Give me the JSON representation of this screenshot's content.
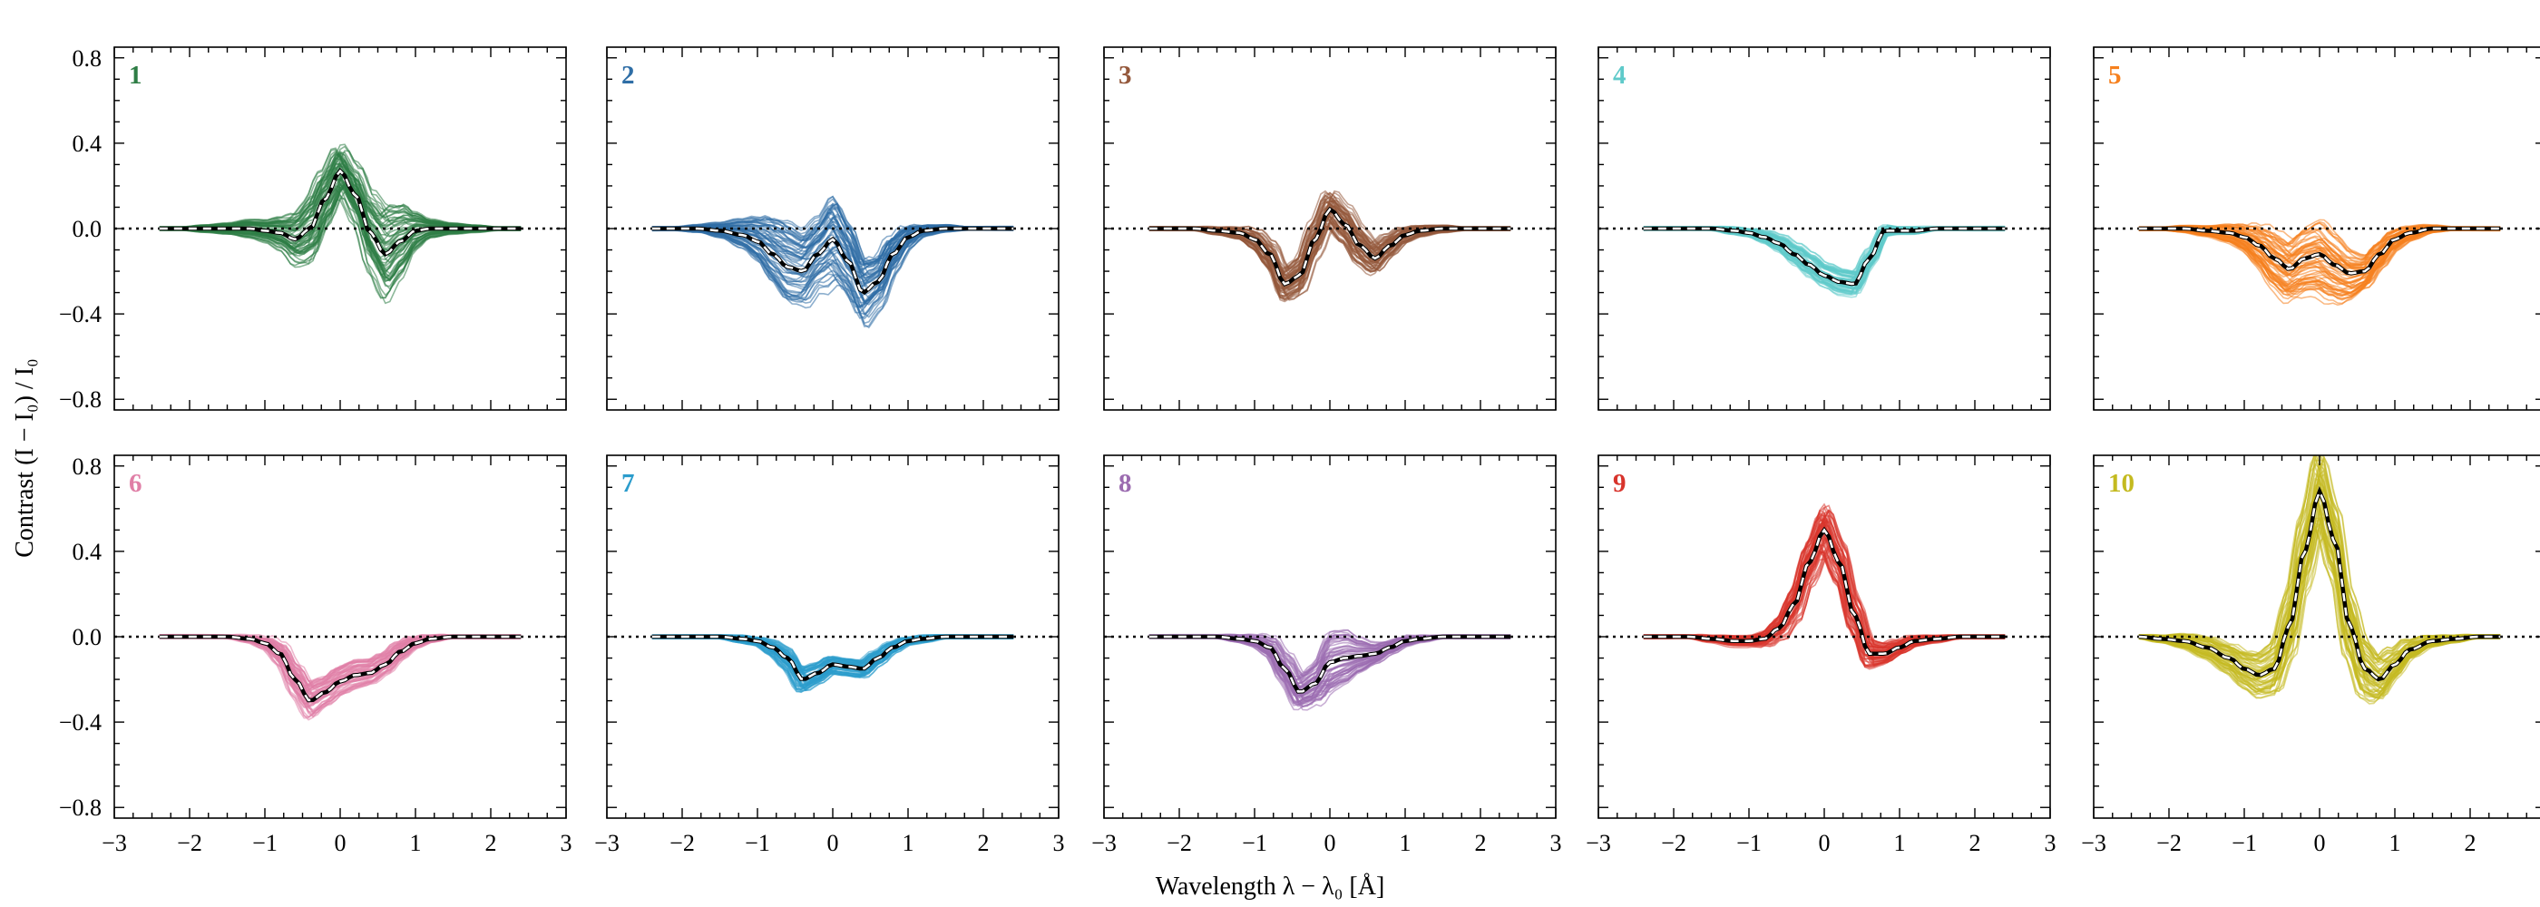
{
  "figure": {
    "ylabel": "Contrast (I − I₀) / I₀",
    "xlabel": "Wavelength  λ − λ₀  [Å]"
  },
  "chart_data": {
    "type": "line",
    "description_units": "x in Å relative to line centre, y in contrast units",
    "xlim": [
      -3,
      3
    ],
    "ylim": [
      -0.85,
      0.85
    ],
    "xticks": [
      -3,
      -2,
      -1,
      0,
      1,
      2,
      3
    ],
    "xtick_labels": [
      "−3",
      "−2",
      "−1",
      "0",
      "1",
      "2",
      "3"
    ],
    "yticks": [
      0.8,
      0.4,
      0.0,
      -0.4,
      -0.8
    ],
    "ytick_labels": [
      "0.8",
      "0.4",
      "0.0",
      "−0.4",
      "−0.8"
    ],
    "x": [
      -2.4,
      -2.1,
      -1.8,
      -1.5,
      -1.2,
      -1.0,
      -0.8,
      -0.6,
      -0.4,
      -0.2,
      0.0,
      0.2,
      0.4,
      0.6,
      0.8,
      1.0,
      1.2,
      1.5,
      1.8,
      2.1,
      2.4
    ],
    "panels": [
      {
        "label": "1",
        "color": "#2e7d45",
        "mean": [
          0,
          0,
          0,
          0,
          0,
          -0.01,
          -0.02,
          -0.05,
          0.0,
          0.14,
          0.27,
          0.16,
          -0.02,
          -0.12,
          -0.06,
          -0.01,
          0,
          0,
          0,
          0,
          0
        ],
        "spread": [
          0.01,
          0.01,
          0.02,
          0.03,
          0.05,
          0.06,
          0.09,
          0.14,
          0.18,
          0.16,
          0.14,
          0.16,
          0.22,
          0.26,
          0.2,
          0.1,
          0.05,
          0.03,
          0.02,
          0.01,
          0.01
        ]
      },
      {
        "label": "2",
        "color": "#2f6ea6",
        "mean": [
          0,
          0,
          0,
          -0.01,
          -0.03,
          -0.06,
          -0.12,
          -0.18,
          -0.2,
          -0.12,
          -0.05,
          -0.15,
          -0.3,
          -0.25,
          -0.12,
          -0.04,
          -0.01,
          0,
          0,
          0,
          0
        ],
        "spread": [
          0.01,
          0.01,
          0.02,
          0.04,
          0.08,
          0.12,
          0.18,
          0.22,
          0.2,
          0.18,
          0.22,
          0.2,
          0.18,
          0.14,
          0.1,
          0.06,
          0.03,
          0.02,
          0.01,
          0.01,
          0.01
        ]
      },
      {
        "label": "3",
        "color": "#94583b",
        "mean": [
          0,
          0,
          0,
          -0.01,
          -0.02,
          -0.05,
          -0.12,
          -0.26,
          -0.22,
          -0.05,
          0.09,
          0.02,
          -0.08,
          -0.14,
          -0.08,
          -0.03,
          -0.01,
          0,
          0,
          0,
          0
        ],
        "spread": [
          0.01,
          0.01,
          0.01,
          0.02,
          0.03,
          0.05,
          0.07,
          0.09,
          0.1,
          0.1,
          0.1,
          0.1,
          0.1,
          0.08,
          0.06,
          0.04,
          0.03,
          0.02,
          0.01,
          0.01,
          0.01
        ]
      },
      {
        "label": "4",
        "color": "#5fcaca",
        "mean": [
          0,
          0,
          0,
          0,
          -0.01,
          -0.02,
          -0.04,
          -0.07,
          -0.12,
          -0.17,
          -0.22,
          -0.25,
          -0.26,
          -0.14,
          -0.01,
          -0.01,
          -0.01,
          0,
          0,
          0,
          0
        ],
        "spread": [
          0.01,
          0.01,
          0.01,
          0.01,
          0.02,
          0.02,
          0.03,
          0.04,
          0.05,
          0.06,
          0.06,
          0.07,
          0.07,
          0.05,
          0.03,
          0.02,
          0.02,
          0.01,
          0.01,
          0.01,
          0.01
        ]
      },
      {
        "label": "5",
        "color": "#f6801d",
        "mean": [
          0,
          0,
          0,
          -0.01,
          -0.02,
          -0.04,
          -0.08,
          -0.14,
          -0.19,
          -0.14,
          -0.12,
          -0.17,
          -0.21,
          -0.2,
          -0.12,
          -0.05,
          -0.02,
          0,
          0,
          0,
          0
        ],
        "spread": [
          0.01,
          0.01,
          0.02,
          0.03,
          0.05,
          0.07,
          0.11,
          0.15,
          0.16,
          0.18,
          0.2,
          0.18,
          0.14,
          0.1,
          0.08,
          0.06,
          0.04,
          0.02,
          0.01,
          0.01,
          0.01
        ]
      },
      {
        "label": "6",
        "color": "#e07ea6",
        "mean": [
          0,
          0,
          0,
          0,
          -0.01,
          -0.03,
          -0.08,
          -0.2,
          -0.3,
          -0.26,
          -0.21,
          -0.18,
          -0.17,
          -0.13,
          -0.07,
          -0.03,
          -0.01,
          0,
          0,
          0,
          0
        ],
        "spread": [
          0.01,
          0.01,
          0.01,
          0.01,
          0.02,
          0.03,
          0.06,
          0.09,
          0.1,
          0.08,
          0.08,
          0.08,
          0.07,
          0.06,
          0.05,
          0.03,
          0.02,
          0.01,
          0.01,
          0.01,
          0.01
        ]
      },
      {
        "label": "7",
        "color": "#2b9ccc",
        "mean": [
          0,
          0,
          0,
          0,
          -0.01,
          -0.02,
          -0.05,
          -0.1,
          -0.2,
          -0.17,
          -0.13,
          -0.14,
          -0.15,
          -0.1,
          -0.05,
          -0.02,
          -0.01,
          0,
          0,
          0,
          0
        ],
        "spread": [
          0.01,
          0.01,
          0.01,
          0.01,
          0.02,
          0.02,
          0.04,
          0.06,
          0.07,
          0.06,
          0.05,
          0.05,
          0.05,
          0.04,
          0.03,
          0.02,
          0.02,
          0.01,
          0.01,
          0.01,
          0.01
        ]
      },
      {
        "label": "8",
        "color": "#9b6bb0",
        "mean": [
          0,
          0,
          0,
          0,
          -0.01,
          -0.02,
          -0.05,
          -0.15,
          -0.26,
          -0.22,
          -0.12,
          -0.1,
          -0.09,
          -0.08,
          -0.05,
          -0.02,
          -0.01,
          0,
          0,
          0,
          0
        ],
        "spread": [
          0.01,
          0.01,
          0.01,
          0.01,
          0.02,
          0.03,
          0.05,
          0.08,
          0.1,
          0.12,
          0.18,
          0.16,
          0.1,
          0.06,
          0.04,
          0.03,
          0.02,
          0.01,
          0.01,
          0.01,
          0.01
        ]
      },
      {
        "label": "9",
        "color": "#d8342c",
        "mean": [
          0,
          0,
          0,
          -0.01,
          -0.02,
          -0.02,
          -0.01,
          0.04,
          0.15,
          0.35,
          0.5,
          0.35,
          0.1,
          -0.08,
          -0.08,
          -0.05,
          -0.02,
          -0.01,
          0,
          0,
          0
        ],
        "spread": [
          0.01,
          0.01,
          0.01,
          0.02,
          0.03,
          0.03,
          0.04,
          0.06,
          0.1,
          0.12,
          0.14,
          0.12,
          0.1,
          0.08,
          0.06,
          0.04,
          0.03,
          0.02,
          0.01,
          0.01,
          0.01
        ]
      },
      {
        "label": "10",
        "color": "#c4ba20",
        "mean": [
          0,
          -0.01,
          -0.02,
          -0.05,
          -0.1,
          -0.15,
          -0.18,
          -0.15,
          0.05,
          0.4,
          0.68,
          0.45,
          0.05,
          -0.15,
          -0.2,
          -0.13,
          -0.06,
          -0.02,
          -0.01,
          0,
          0
        ],
        "spread": [
          0.01,
          0.02,
          0.04,
          0.06,
          0.08,
          0.1,
          0.12,
          0.14,
          0.18,
          0.2,
          0.22,
          0.2,
          0.18,
          0.16,
          0.12,
          0.08,
          0.05,
          0.03,
          0.02,
          0.01,
          0.01
        ]
      }
    ]
  }
}
